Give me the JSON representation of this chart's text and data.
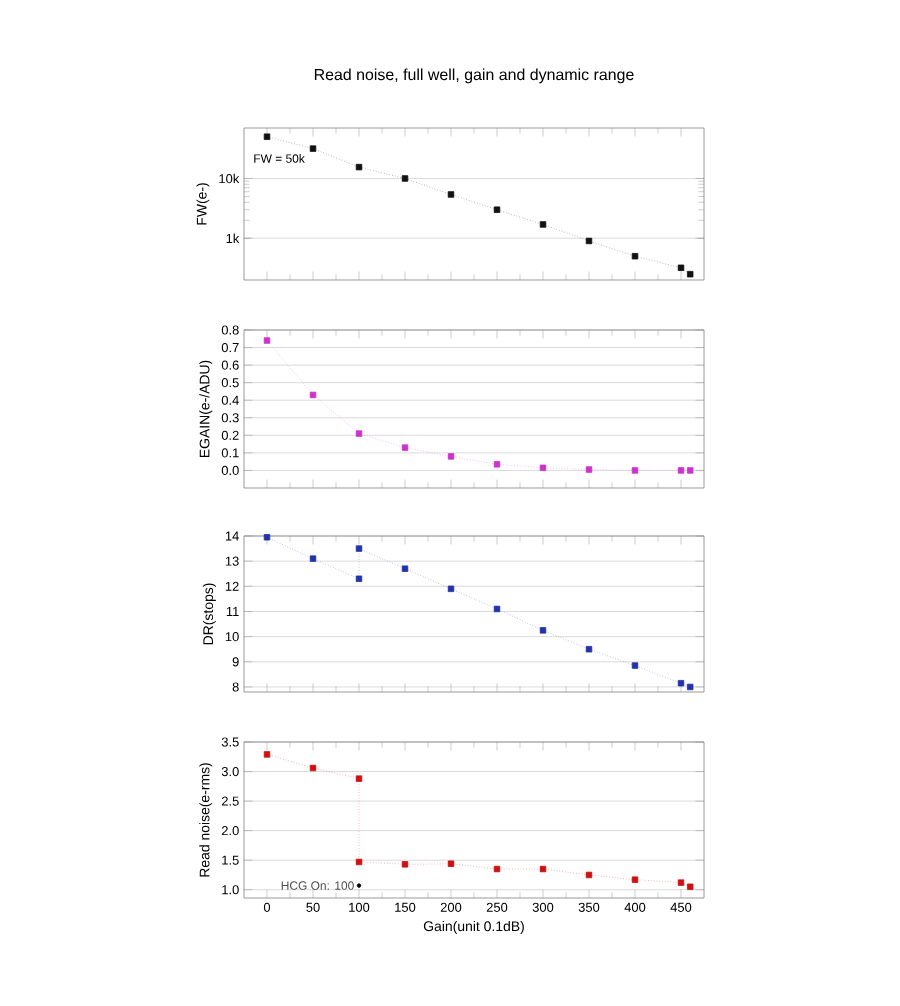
{
  "chart_data": [
    {
      "type": "line",
      "title": "Read noise, full well, gain and dynamic range",
      "ylabel": "FW(e-)",
      "annotations": [
        "FW = 50k"
      ],
      "color": "#111111",
      "x": [
        0,
        50,
        100,
        150,
        200,
        250,
        300,
        350,
        400,
        450,
        460
      ],
      "values": [
        50000,
        31600,
        15500,
        10000,
        5400,
        3000,
        1700,
        900,
        500,
        320,
        250
      ],
      "xlim": [
        -25,
        475
      ],
      "xticks": [
        0,
        50,
        100,
        150,
        200,
        250,
        300,
        350,
        400,
        450
      ],
      "log": "y",
      "ylim": [
        200,
        70000
      ],
      "yticks": [
        {
          "value": 1000,
          "label": "1k"
        },
        {
          "value": 10000,
          "label": "10k"
        }
      ],
      "grid": "y",
      "tick_labels": "y",
      "marker": "square",
      "line_style": "dotted"
    },
    {
      "type": "line",
      "ylabel": "EGAIN(e-/ADU)",
      "color": "#cc33cc",
      "x": [
        0,
        50,
        100,
        150,
        200,
        250,
        300,
        350,
        400,
        450,
        460
      ],
      "values": [
        0.74,
        0.43,
        0.21,
        0.13,
        0.08,
        0.035,
        0.015,
        0.005,
        0.0,
        0.0,
        0.0
      ],
      "xlim": [
        -25,
        475
      ],
      "xticks": [
        0,
        50,
        100,
        150,
        200,
        250,
        300,
        350,
        400,
        450
      ],
      "ylim": [
        -0.1,
        0.8
      ],
      "yticks": [
        {
          "value": 0,
          "label": "0.0"
        },
        0.1,
        0.2,
        0.3,
        0.4,
        0.5,
        0.6,
        0.7,
        {
          "value": 0.8,
          "label": "0.8"
        }
      ],
      "grid": "y",
      "tick_labels": "y",
      "marker": "square",
      "line_style": "dotted"
    },
    {
      "type": "line",
      "ylabel": "DR(stops)",
      "color": "#2233aa",
      "x": [
        0,
        50,
        100,
        100,
        150,
        200,
        250,
        300,
        350,
        400,
        450,
        460
      ],
      "values": [
        13.95,
        13.1,
        12.3,
        13.5,
        12.7,
        11.9,
        11.1,
        10.25,
        9.5,
        8.85,
        8.15,
        8.0
      ],
      "xlim": [
        -25,
        475
      ],
      "xticks": [
        0,
        50,
        100,
        150,
        200,
        250,
        300,
        350,
        400,
        450
      ],
      "ylim": [
        7.8,
        14
      ],
      "yticks": [
        8,
        9,
        10,
        11,
        12,
        13,
        14
      ],
      "grid": "y",
      "tick_labels": "y",
      "marker": "square",
      "line_style": "dotted"
    },
    {
      "type": "line",
      "ylabel": "Read noise(e-rms)",
      "xlabel": "Gain(unit 0.1dB)",
      "color": "#cc1111",
      "annotations": [
        {
          "text": "HCG On: 100",
          "x": 100,
          "y": 1.07
        }
      ],
      "x": [
        0,
        50,
        100,
        100,
        150,
        200,
        250,
        300,
        350,
        400,
        450,
        460
      ],
      "values": [
        3.29,
        3.06,
        2.88,
        1.47,
        1.43,
        1.44,
        1.35,
        1.35,
        1.25,
        1.17,
        1.12,
        1.05
      ],
      "xlim": [
        -25,
        475
      ],
      "xticks": [
        0,
        50,
        100,
        150,
        200,
        250,
        300,
        350,
        400,
        450
      ],
      "ylim": [
        0.86,
        3.5
      ],
      "yticks": [
        {
          "value": 1,
          "label": "1.0"
        },
        1.5,
        {
          "value": 2,
          "label": "2.0"
        },
        2.5,
        {
          "value": 3,
          "label": "3.0"
        },
        3.5
      ],
      "grid": "y",
      "marker": "square",
      "line_style": "dotted"
    }
  ]
}
